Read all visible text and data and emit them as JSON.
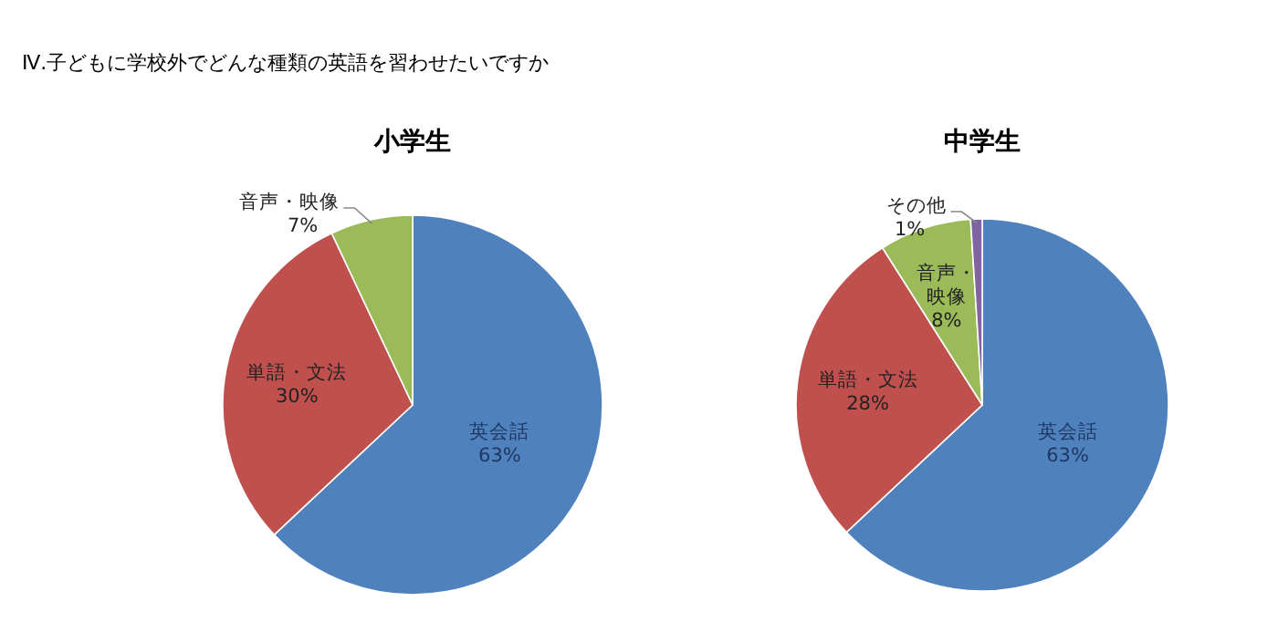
{
  "chart_data": [
    {
      "type": "pie",
      "title": "小学生",
      "annotations": [
        "Ⅳ.子どもに学校外でどんな種類の英語を習わせたいですか"
      ],
      "categories": [
        "英会話",
        "単語・文法",
        "音声・映像"
      ],
      "values": [
        63,
        30,
        7
      ],
      "value_labels": [
        "63%",
        "30%",
        "7%"
      ],
      "colors": [
        "#4f81bd",
        "#c0504d",
        "#9bbb59"
      ]
    },
    {
      "type": "pie",
      "title": "中学生",
      "categories": [
        "英会話",
        "単語・文法",
        "音声・映像",
        "その他"
      ],
      "values": [
        63,
        28,
        8,
        1
      ],
      "value_labels": [
        "63%",
        "28%",
        "8%",
        "1%"
      ],
      "colors": [
        "#4f81bd",
        "#c0504d",
        "#9bbb59",
        "#8064a2"
      ]
    }
  ]
}
